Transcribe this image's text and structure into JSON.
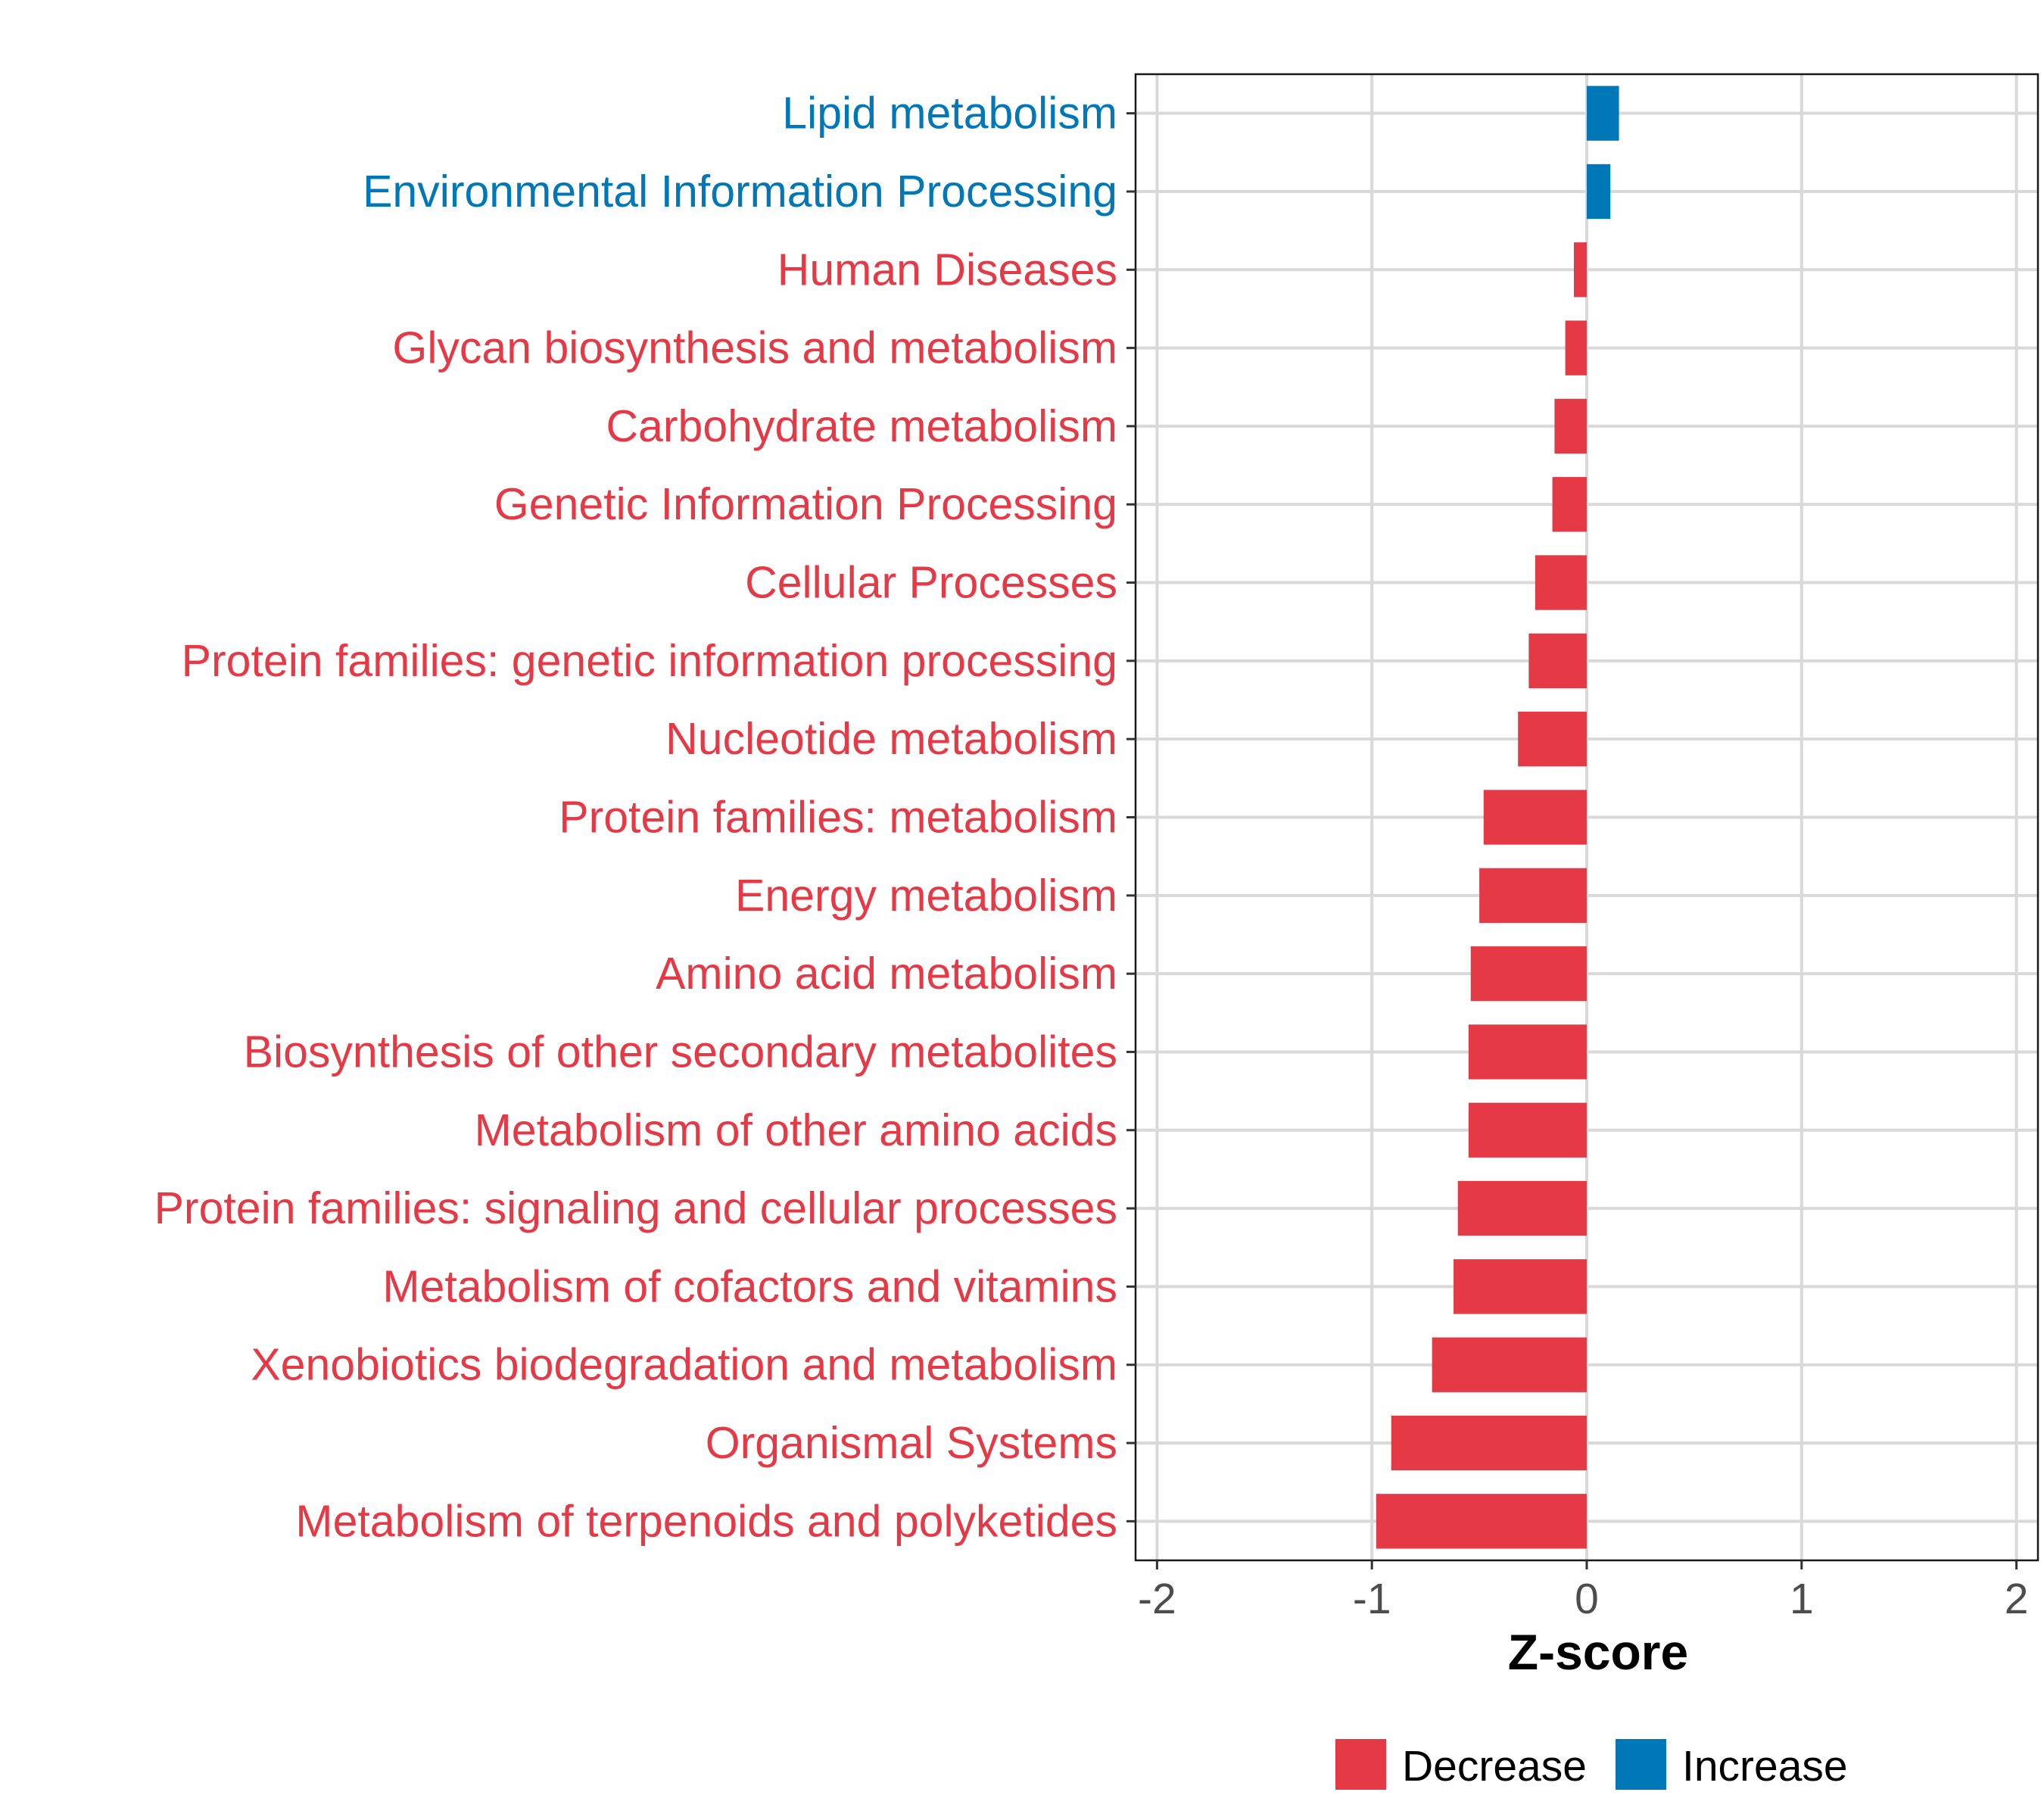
{
  "chart_data": {
    "type": "bar",
    "orientation": "horizontal",
    "xlabel": "Z-score",
    "ylabel": "",
    "xlim": [
      -2.1,
      2.1
    ],
    "x_ticks": [
      "-2",
      "-1",
      "0",
      "1",
      "2"
    ],
    "x_tick_values": [
      -2,
      -1,
      0,
      1,
      2
    ],
    "grid": true,
    "legend_position": "bottom",
    "legend": [
      {
        "label": "Decrease",
        "color": "#E63946"
      },
      {
        "label": "Increase",
        "color": "#0077B6"
      }
    ],
    "categories": [
      "Lipid metabolism",
      "Environmental Information Processing",
      "Human Diseases",
      "Glycan biosynthesis and metabolism",
      "Carbohydrate metabolism",
      "Genetic Information Processing",
      "Cellular Processes",
      "Protein families: genetic information processing",
      "Nucleotide metabolism",
      "Protein families: metabolism",
      "Energy metabolism",
      "Amino acid metabolism",
      "Biosynthesis of other secondary metabolites",
      "Metabolism of other amino acids",
      "Protein families: signaling and cellular processes",
      "Metabolism of cofactors and vitamins",
      "Xenobiotics biodegradation and metabolism",
      "Organismal Systems",
      "Metabolism of terpenoids and polyketides"
    ],
    "values": [
      0.15,
      0.11,
      -0.06,
      -0.1,
      -0.15,
      -0.16,
      -0.24,
      -0.27,
      -0.32,
      -0.48,
      -0.5,
      -0.54,
      -0.55,
      -0.55,
      -0.6,
      -0.62,
      -0.72,
      -0.91,
      -0.98
    ],
    "colors": {
      "Decrease": "#E63946",
      "Increase": "#0077B6"
    }
  }
}
